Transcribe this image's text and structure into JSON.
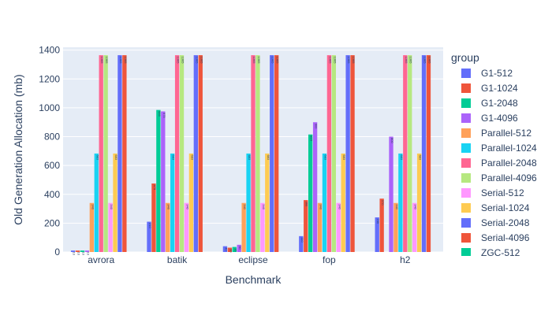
{
  "chart_data": {
    "type": "bar",
    "barmode": "group",
    "xlabel": "Benchmark",
    "ylabel": "Old Generation Allocation (mb)",
    "ylim": [
      0,
      1420
    ],
    "yticks": [
      0,
      200,
      400,
      600,
      800,
      1000,
      1200,
      1400
    ],
    "grid": true,
    "legend_title": "group",
    "legend_position": "right",
    "categories": [
      "avrora",
      "batik",
      "eclipse",
      "fop",
      "h2"
    ],
    "series": [
      {
        "name": "G1-512",
        "color": "#636efa",
        "values": [
          10,
          210,
          40,
          110,
          240
        ]
      },
      {
        "name": "G1-1024",
        "color": "#EF553B",
        "values": [
          10,
          475,
          30,
          360,
          370
        ]
      },
      {
        "name": "G1-2048",
        "color": "#00cc96",
        "values": [
          10,
          985,
          35,
          815,
          0
        ]
      },
      {
        "name": "G1-4096",
        "color": "#ab63fa",
        "values": [
          10,
          975,
          50,
          900,
          800
        ]
      },
      {
        "name": "Parallel-512",
        "color": "#FFA15A",
        "values": [
          340,
          340,
          340,
          340,
          340
        ]
      },
      {
        "name": "Parallel-1024",
        "color": "#19d3f3",
        "values": [
          683,
          683,
          683,
          683,
          683
        ]
      },
      {
        "name": "Parallel-2048",
        "color": "#FF6692",
        "values": [
          1365,
          1365,
          1365,
          1365,
          1365
        ]
      },
      {
        "name": "Parallel-4096",
        "color": "#B6E880",
        "values": [
          1365,
          1365,
          1365,
          1365,
          1365
        ]
      },
      {
        "name": "Serial-512",
        "color": "#FF97FF",
        "values": [
          340,
          340,
          340,
          340,
          340
        ]
      },
      {
        "name": "Serial-1024",
        "color": "#FECB52",
        "values": [
          683,
          683,
          683,
          683,
          683
        ]
      },
      {
        "name": "Serial-2048",
        "color": "#636efa",
        "values": [
          1365,
          1365,
          1365,
          1365,
          1365
        ]
      },
      {
        "name": "Serial-4096",
        "color": "#EF553B",
        "values": [
          1365,
          1365,
          1365,
          1365,
          1365
        ]
      },
      {
        "name": "ZGC-512",
        "color": "#00cc96",
        "values": [
          0,
          0,
          0,
          0,
          0
        ]
      }
    ]
  }
}
